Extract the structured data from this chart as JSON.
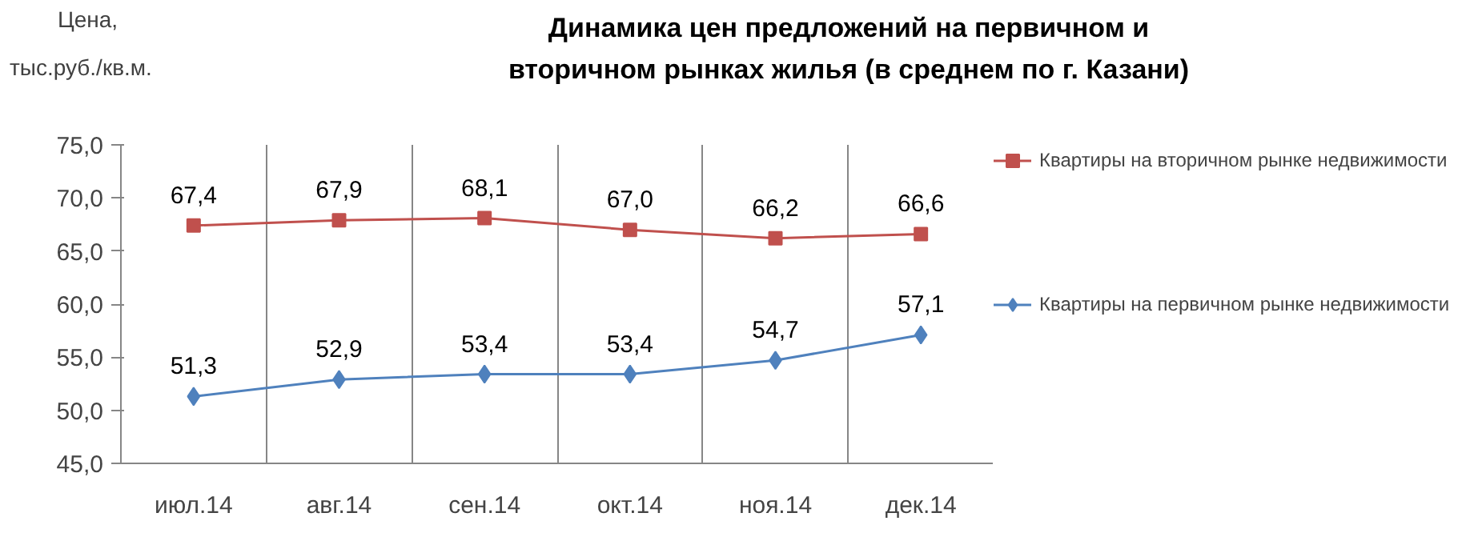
{
  "chart_data": {
    "type": "line",
    "title": "Динамика цен предложений на первичном и вторичном рынках жилья (в среднем по г. Казани)",
    "ylabel": "Цена, тыс.руб./кв.м.",
    "categories": [
      "июл.14",
      "авг.14",
      "сен.14",
      "окт.14",
      "ноя.14",
      "дек.14"
    ],
    "series": [
      {
        "name": "Квартиры на вторичном рынке недвижимости",
        "color": "#c0504d",
        "marker": "square",
        "values": [
          67.4,
          67.9,
          68.1,
          67.0,
          66.2,
          66.6
        ],
        "value_labels": [
          "67,4",
          "67,9",
          "68,1",
          "67,0",
          "66,2",
          "66,6"
        ]
      },
      {
        "name": "Квартиры на первичном рынке недвижимости",
        "color": "#4f81bd",
        "marker": "diamond",
        "values": [
          51.3,
          52.9,
          53.4,
          53.4,
          54.7,
          57.1
        ],
        "value_labels": [
          "51,3",
          "52,9",
          "53,4",
          "53,4",
          "54,7",
          "57,1"
        ]
      }
    ],
    "ylim": [
      45,
      75
    ],
    "yticks": [
      {
        "value": 45,
        "label": "45,0"
      },
      {
        "value": 50,
        "label": "50,0"
      },
      {
        "value": 55,
        "label": "55,0"
      },
      {
        "value": 60,
        "label": "60,0"
      },
      {
        "value": 65,
        "label": "65,0"
      },
      {
        "value": 70,
        "label": "70,0"
      },
      {
        "value": 75,
        "label": "75,0"
      }
    ],
    "grid": "x",
    "legend": "right",
    "line_style": "solid"
  }
}
